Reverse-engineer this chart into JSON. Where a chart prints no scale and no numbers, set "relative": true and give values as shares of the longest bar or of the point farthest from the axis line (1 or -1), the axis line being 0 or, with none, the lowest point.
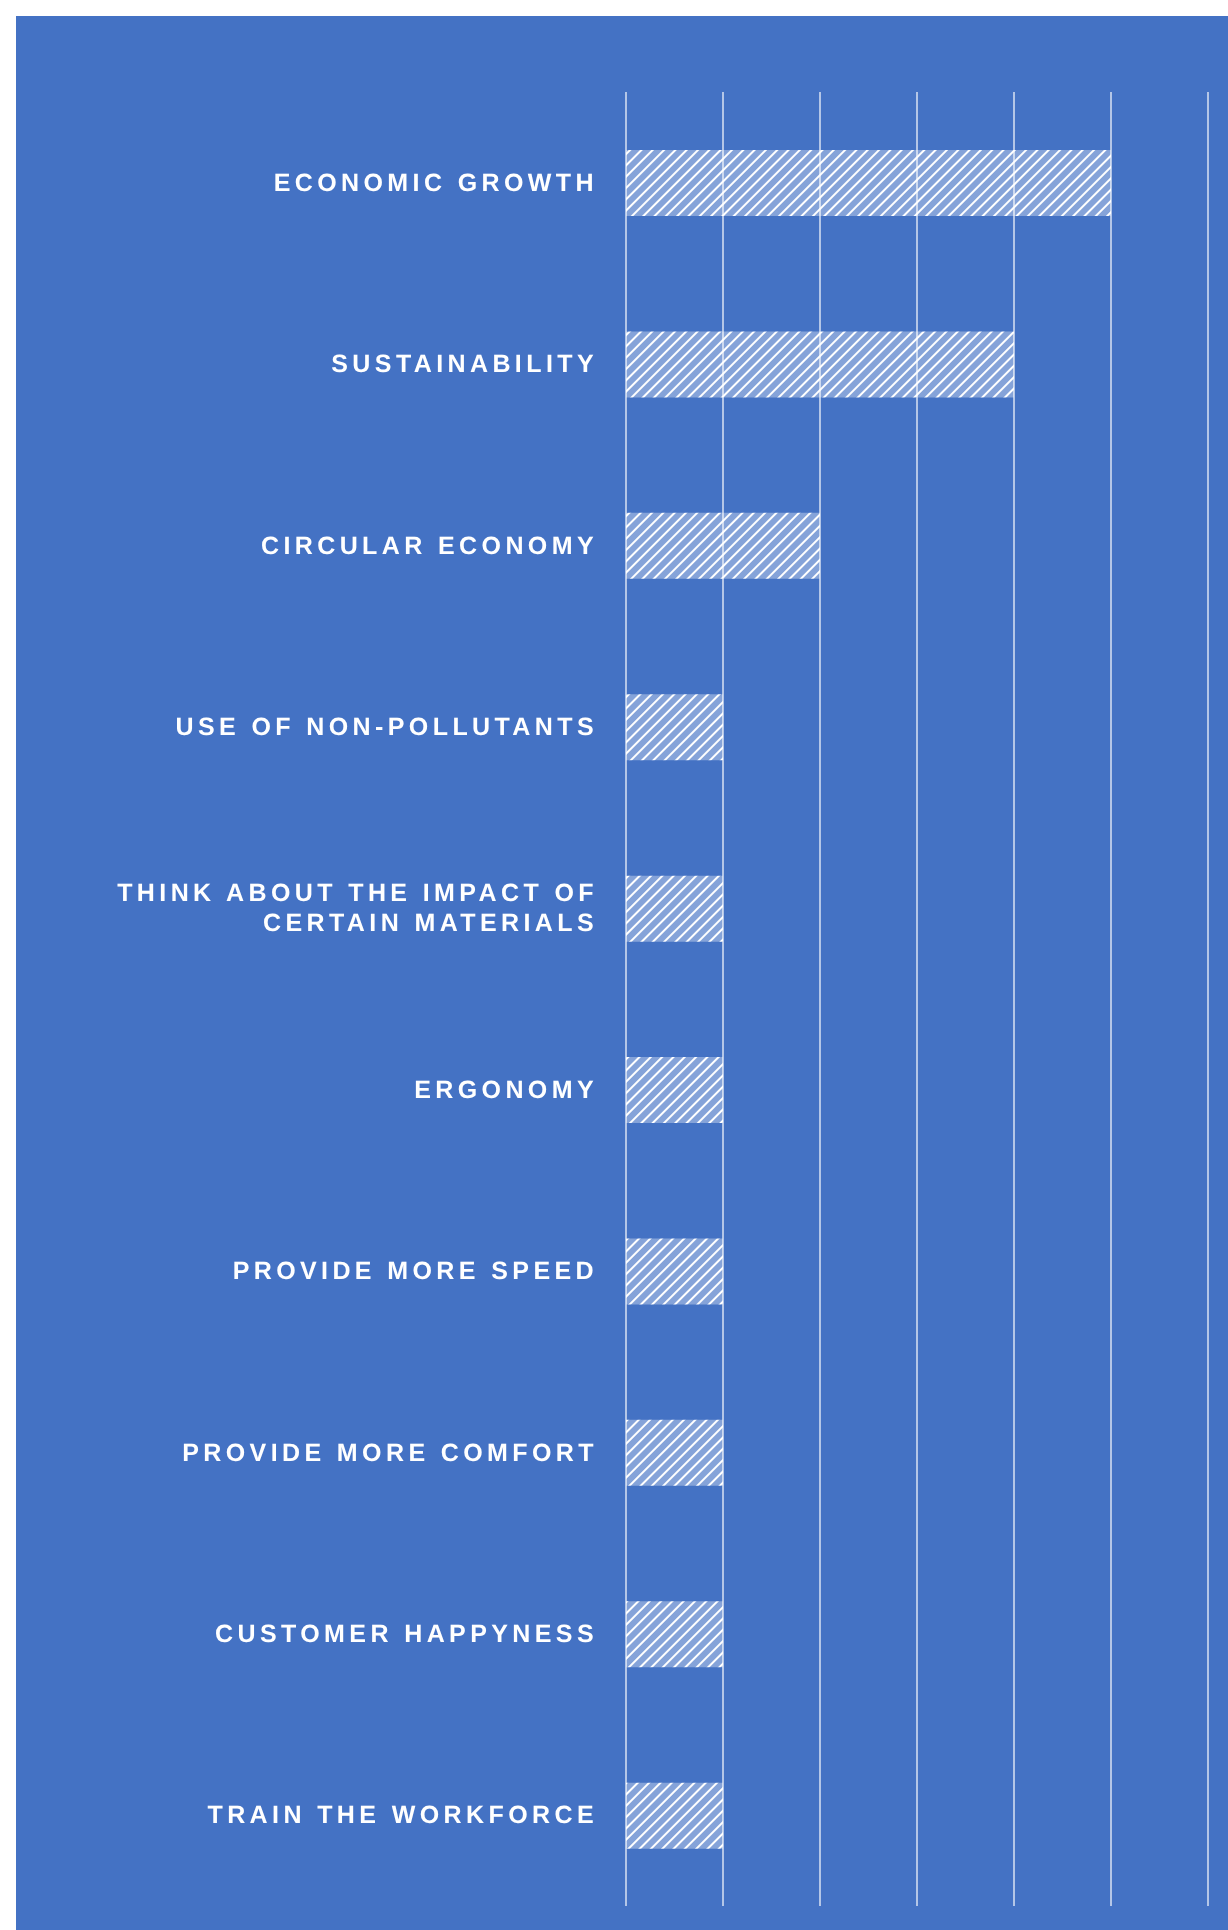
{
  "chart_data": {
    "type": "bar",
    "orientation": "horizontal",
    "relative": true,
    "grid": "x",
    "categories": [
      "ECONOMIC GROWTH",
      "SUSTAINABILITY",
      "CIRCULAR ECONOMY",
      "USE OF NON-POLLUTANTS",
      "THINK ABOUT THE IMPACT OF CERTAIN MATERIALS",
      "ERGONOMY",
      "PROVIDE MORE SPEED",
      "PROVIDE MORE COMFORT",
      "CUSTOMER HAPPYNESS",
      "TRAIN THE WORKFORCE"
    ],
    "values": [
      1,
      0.8,
      0.4,
      0.2,
      0.2,
      0.2,
      0.2,
      0.2,
      0.2,
      0.2
    ],
    "color": "#ffffff"
  }
}
